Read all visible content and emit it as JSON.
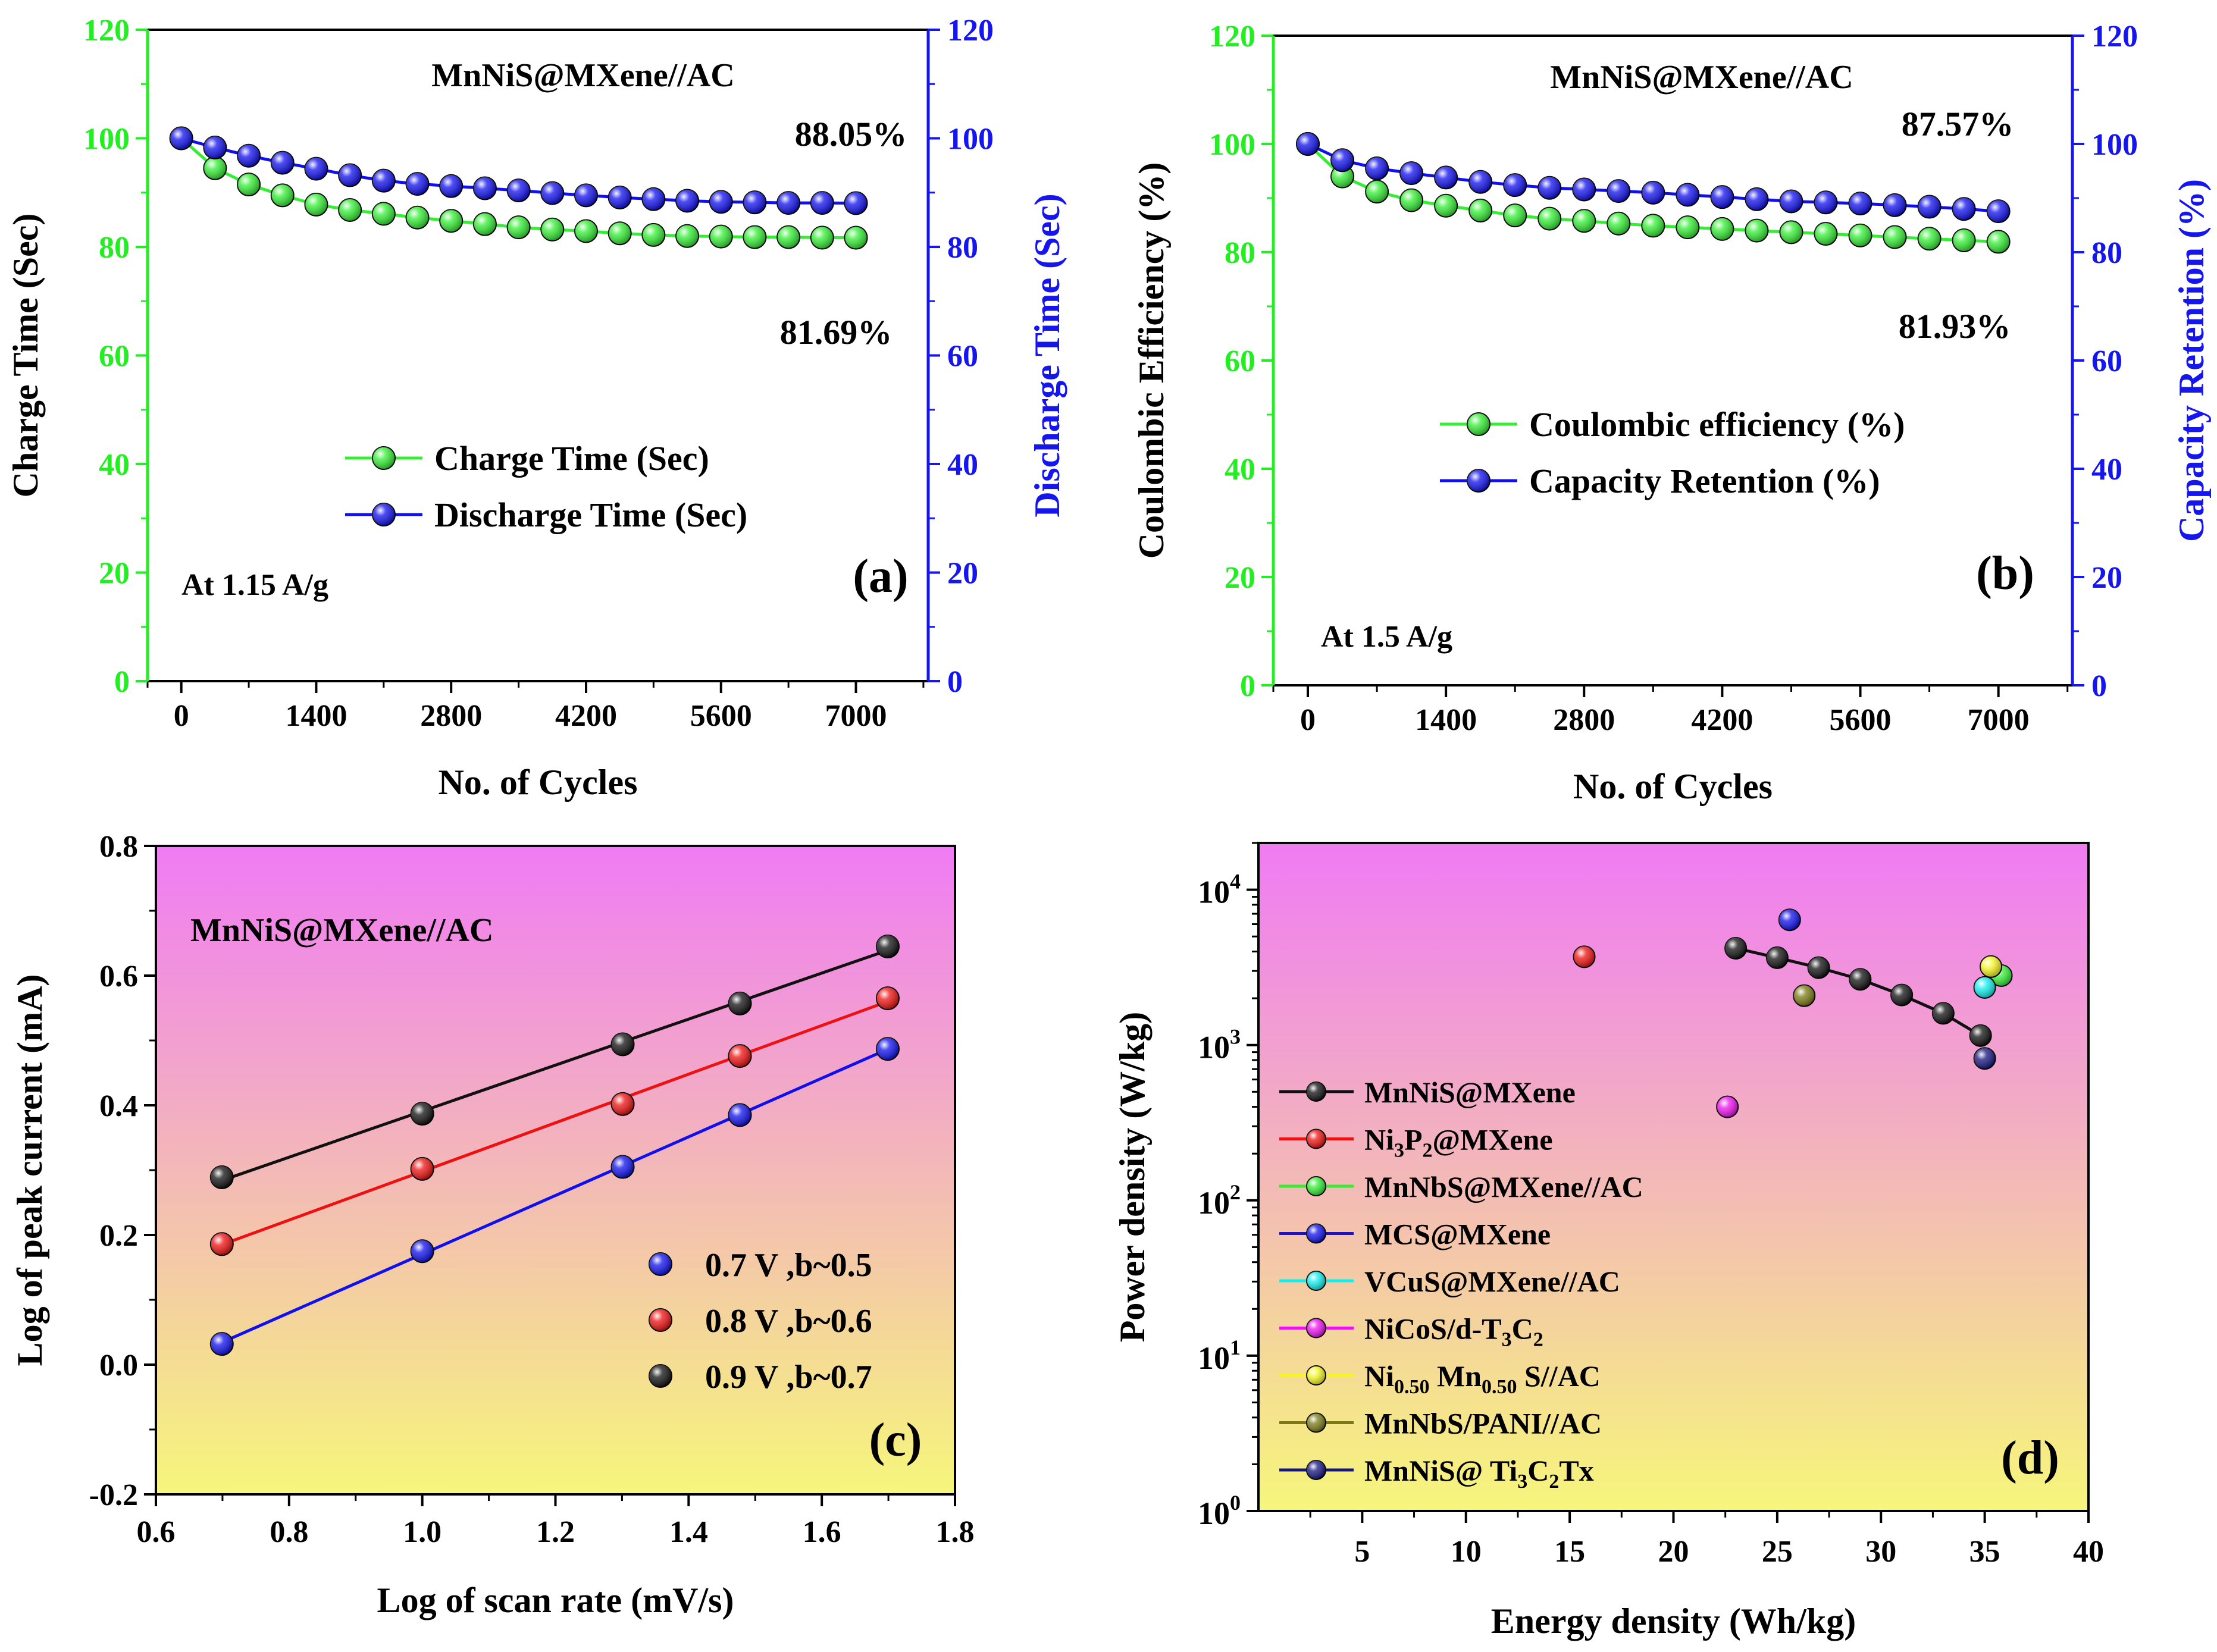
{
  "colors": {
    "green": "#33EE33",
    "blue": "#1010EE",
    "red": "#EE1111",
    "black": "#111111",
    "axis_left_ab": "#22EE22",
    "axis_right_ab": "#1515EE",
    "gradient_top": "#F07BF4",
    "gradient_bottom": "#F6F67B"
  },
  "chart_data": [
    {
      "id": "a",
      "type": "line",
      "panel_label": "(a)",
      "title": "MnNiS@MXene//AC",
      "condition": "At 1.15 A/g",
      "xlabel": "No. of Cycles",
      "ylabel_left": "Charge Time (Sec)",
      "ylabel_right": "Discharge Time (Sec)",
      "xlim": [
        -350,
        7750
      ],
      "xticks": [
        "0",
        "1400",
        "2800",
        "4200",
        "5600",
        "7000"
      ],
      "xtick_values": [
        0,
        1400,
        2800,
        4200,
        5600,
        7000
      ],
      "ylim": [
        0,
        120
      ],
      "yticks": [
        "0",
        "20",
        "40",
        "60",
        "80",
        "100",
        "120"
      ],
      "ytick_values": [
        0,
        20,
        40,
        60,
        80,
        100,
        120
      ],
      "legend_position": "center-left",
      "annotations": [
        "88.05%",
        "81.69%"
      ],
      "x": [
        0,
        350,
        700,
        1050,
        1400,
        1750,
        2100,
        2450,
        2800,
        3150,
        3500,
        3850,
        4200,
        4550,
        4900,
        5250,
        5600,
        5950,
        6300,
        6650,
        7000
      ],
      "series": [
        {
          "name": "Charge Time (Sec)",
          "color": "#33EE33",
          "values": [
            100,
            94.5,
            91.5,
            89.5,
            87.8,
            86.8,
            86.1,
            85.4,
            84.8,
            84.2,
            83.6,
            83.2,
            82.9,
            82.5,
            82.2,
            82.0,
            81.9,
            81.8,
            81.8,
            81.7,
            81.69
          ]
        },
        {
          "name": "Discharge Time (Sec)",
          "color": "#1010EE",
          "values": [
            100,
            98.3,
            96.8,
            95.5,
            94.4,
            93.2,
            92.2,
            91.6,
            91.2,
            90.8,
            90.4,
            89.9,
            89.5,
            89.1,
            88.8,
            88.5,
            88.3,
            88.2,
            88.1,
            88.1,
            88.05
          ]
        }
      ]
    },
    {
      "id": "b",
      "type": "line",
      "panel_label": "(b)",
      "title": "MnNiS@MXene//AC",
      "condition": "At 1.5 A/g",
      "xlabel": "No. of Cycles",
      "ylabel_left": "Coulombic Efficiency (%)",
      "ylabel_right": "Capacity Retention (%)",
      "xlim": [
        -350,
        7750
      ],
      "xticks": [
        "0",
        "1400",
        "2800",
        "4200",
        "5600",
        "7000"
      ],
      "xtick_values": [
        0,
        1400,
        2800,
        4200,
        5600,
        7000
      ],
      "ylim": [
        0,
        120
      ],
      "yticks": [
        "0",
        "20",
        "40",
        "60",
        "80",
        "100",
        "120"
      ],
      "ytick_values": [
        0,
        20,
        40,
        60,
        80,
        100,
        120
      ],
      "legend_position": "center-right",
      "annotations": [
        "87.57%",
        "81.93%"
      ],
      "x": [
        0,
        350,
        700,
        1050,
        1400,
        1750,
        2100,
        2450,
        2800,
        3150,
        3500,
        3850,
        4200,
        4550,
        4900,
        5250,
        5600,
        5950,
        6300,
        6650,
        7000
      ],
      "series": [
        {
          "name": "Coulombic efficiency (%)",
          "color": "#33EE33",
          "values": [
            100,
            94,
            91.2,
            89.6,
            88.6,
            87.7,
            86.8,
            86.2,
            85.8,
            85.3,
            84.9,
            84.6,
            84.3,
            84.0,
            83.7,
            83.4,
            83.1,
            82.8,
            82.5,
            82.2,
            81.93
          ]
        },
        {
          "name": "Capacity Retention (%)",
          "color": "#1010EE",
          "values": [
            100,
            97,
            95.5,
            94.6,
            93.8,
            93.0,
            92.4,
            91.9,
            91.6,
            91.3,
            91.0,
            90.6,
            90.2,
            89.8,
            89.4,
            89.2,
            89.0,
            88.7,
            88.4,
            88.0,
            87.57
          ]
        }
      ]
    },
    {
      "id": "c",
      "type": "scatter",
      "panel_label": "(c)",
      "title": "MnNiS@MXene//AC",
      "xlabel": "Log of scan rate (mV/s)",
      "ylabel": "Log of peak current (mA)",
      "xlim": [
        0.6,
        1.8
      ],
      "xticks": [
        "0.6",
        "0.8",
        "1.0",
        "1.2",
        "1.4",
        "1.6",
        "1.8"
      ],
      "xtick_values": [
        0.6,
        0.8,
        1.0,
        1.2,
        1.4,
        1.6,
        1.8
      ],
      "ylim": [
        -0.2,
        0.8
      ],
      "yticks": [
        "-0.2",
        "0.0",
        "0.2",
        "0.4",
        "0.6",
        "0.8"
      ],
      "ytick_values": [
        -0.2,
        0.0,
        0.2,
        0.4,
        0.6,
        0.8
      ],
      "legend_position": "lower-right",
      "x": [
        0.699,
        1.0,
        1.301,
        1.477,
        1.699
      ],
      "series": [
        {
          "name": "0.7 V ,b~0.5",
          "color": "#1010EE",
          "values": [
            0.032,
            0.175,
            0.305,
            0.385,
            0.487
          ]
        },
        {
          "name": "0.8 V ,b~0.6",
          "color": "#EE1111",
          "values": [
            0.186,
            0.302,
            0.402,
            0.476,
            0.565
          ]
        },
        {
          "name": "0.9 V ,b~0.7",
          "color": "#111111",
          "values": [
            0.289,
            0.387,
            0.494,
            0.557,
            0.645
          ]
        }
      ]
    },
    {
      "id": "d",
      "type": "scatter",
      "panel_label": "(d)",
      "xlabel": "Energy density (Wh/kg)",
      "ylabel": "Power density (W/kg)",
      "y_scale": "log",
      "xlim": [
        0,
        40
      ],
      "xticks": [
        "5",
        "10",
        "15",
        "20",
        "25",
        "30",
        "35",
        "40"
      ],
      "xtick_values": [
        5,
        10,
        15,
        20,
        25,
        30,
        35,
        40
      ],
      "ylim": [
        1,
        20000
      ],
      "ytick_values": [
        1,
        10,
        100,
        1000,
        10000
      ],
      "ytick_mantissa": [
        "10",
        "10",
        "10",
        "10",
        "10"
      ],
      "ytick_exponent": [
        "0",
        "1",
        "2",
        "3",
        "4"
      ],
      "legend_position": "left",
      "series": [
        {
          "name": "MnNiS@MXene",
          "color": "#111111",
          "x": [
            23.0,
            25.0,
            27.0,
            29.0,
            31.0,
            33.0,
            34.8
          ],
          "y": [
            4200,
            3650,
            3150,
            2650,
            2100,
            1600,
            1150
          ]
        },
        {
          "name": "Ni3P2@MXene",
          "color": "#EE1111",
          "x": [
            15.7
          ],
          "y": [
            3700
          ]
        },
        {
          "name": "MnNbS@MXene//AC",
          "color": "#33EE33",
          "x": [
            35.8
          ],
          "y": [
            2800
          ]
        },
        {
          "name": "MCS@MXene",
          "color": "#1010EE",
          "x": [
            25.6
          ],
          "y": [
            6400
          ]
        },
        {
          "name": "VCuS@MXene//AC",
          "color": "#11EEEE",
          "x": [
            35.0
          ],
          "y": [
            2350
          ]
        },
        {
          "name": "NiCoS/d-T3C2",
          "color": "#EE11EE",
          "x": [
            22.6
          ],
          "y": [
            400
          ]
        },
        {
          "name": "Ni0.50 Mn0.50 S//AC",
          "color": "#F6F622",
          "x": [
            35.3
          ],
          "y": [
            3200
          ]
        },
        {
          "name": "MnNbS/PANI//AC",
          "color": "#7A7A15",
          "x": [
            26.3
          ],
          "y": [
            2080
          ]
        },
        {
          "name": "MnNiS@ Ti3C2Tx",
          "color": "#151580",
          "x": [
            35.0
          ],
          "y": [
            820
          ]
        }
      ],
      "legend_labels": [
        {
          "main": "MnNiS@MXene"
        },
        {
          "main": "Ni",
          "sub1": "3",
          "mid": "P",
          "sub2": "2",
          "tail": "@MXene"
        },
        {
          "main": "MnNbS@MXene//AC"
        },
        {
          "main": "MCS@MXene"
        },
        {
          "main": "VCuS@MXene//AC"
        },
        {
          "main": "NiCoS/d-T",
          "sub1": "3",
          "mid": "C",
          "sub2": "2",
          "tail": ""
        },
        {
          "main": "Ni",
          "sub1": "0.50",
          "mid": " Mn",
          "sub2": "0.50",
          "tail": " S//AC"
        },
        {
          "main": "MnNbS/PANI//AC"
        },
        {
          "main": "MnNiS@ Ti",
          "sub1": "3",
          "mid": "C",
          "sub2": "2",
          "tail": "Tx"
        }
      ]
    }
  ]
}
